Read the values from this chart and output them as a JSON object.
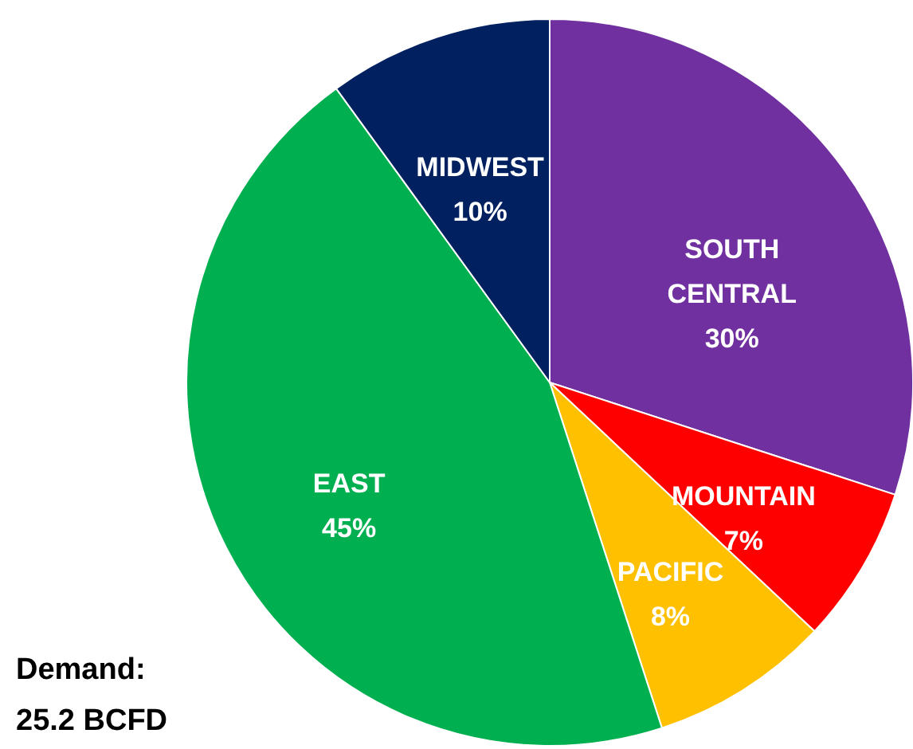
{
  "chart_data": {
    "type": "pie",
    "categories": [
      "SOUTH CENTRAL",
      "MOUNTAIN",
      "PACIFIC",
      "EAST",
      "MIDWEST"
    ],
    "values": [
      30,
      7,
      8,
      45,
      10
    ],
    "value_labels": [
      "30%",
      "7%",
      "8%",
      "45%",
      "10%"
    ],
    "colors": [
      "#7030a0",
      "#ff0000",
      "#ffc000",
      "#00b050",
      "#002060"
    ],
    "annotations": [
      "Demand: 25.2 BCFD"
    ]
  }
}
